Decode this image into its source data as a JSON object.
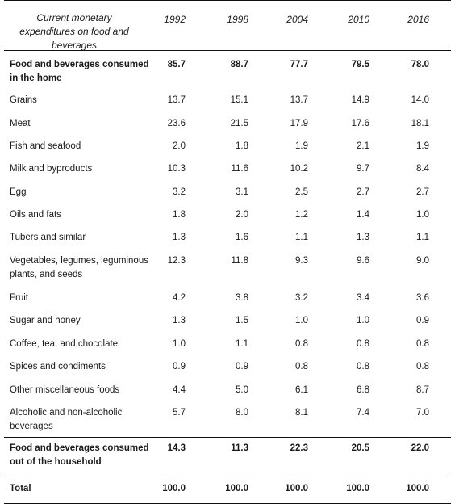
{
  "header": {
    "label": "Current monetary expenditures on food and beverages",
    "years": [
      "1992",
      "1998",
      "2004",
      "2010",
      "2016"
    ]
  },
  "rows": [
    {
      "label": "Food and beverages consumed in the home",
      "values": [
        "85.7",
        "88.7",
        "77.7",
        "79.5",
        "78.0"
      ],
      "bold": true
    },
    {
      "label": "Grains",
      "values": [
        "13.7",
        "15.1",
        "13.7",
        "14.9",
        "14.0"
      ]
    },
    {
      "label": "Meat",
      "values": [
        "23.6",
        "21.5",
        "17.9",
        "17.6",
        "18.1"
      ]
    },
    {
      "label": "Fish and seafood",
      "values": [
        "2.0",
        "1.8",
        "1.9",
        "2.1",
        "1.9"
      ]
    },
    {
      "label": "Milk and byproducts",
      "values": [
        "10.3",
        "11.6",
        "10.2",
        "9.7",
        "8.4"
      ]
    },
    {
      "label": "Egg",
      "values": [
        "3.2",
        "3.1",
        "2.5",
        "2.7",
        "2.7"
      ]
    },
    {
      "label": "Oils and fats",
      "values": [
        "1.8",
        "2.0",
        "1.2",
        "1.4",
        "1.0"
      ]
    },
    {
      "label": "Tubers and similar",
      "values": [
        "1.3",
        "1.6",
        "1.1",
        "1.3",
        "1.1"
      ]
    },
    {
      "label": "Vegetables, legumes, leguminous plants, and seeds",
      "values": [
        "12.3",
        "11.8",
        "9.3",
        "9.6",
        "9.0"
      ]
    },
    {
      "label": "Fruit",
      "values": [
        "4.2",
        "3.8",
        "3.2",
        "3.4",
        "3.6"
      ]
    },
    {
      "label": "Sugar and honey",
      "values": [
        "1.3",
        "1.5",
        "1.0",
        "1.0",
        "0.9"
      ]
    },
    {
      "label": "Coffee, tea, and chocolate",
      "values": [
        "1.0",
        "1.1",
        "0.8",
        "0.8",
        "0.8"
      ]
    },
    {
      "label": "Spices and condiments",
      "values": [
        "0.9",
        "0.9",
        "0.8",
        "0.8",
        "0.8"
      ]
    },
    {
      "label": "Other miscellaneous foods",
      "values": [
        "4.4",
        "5.0",
        "6.1",
        "6.8",
        "8.7"
      ]
    },
    {
      "label": "Alcoholic and non-alcoholic beverages",
      "values": [
        "5.7",
        "8.0",
        "8.1",
        "7.4",
        "7.0"
      ]
    },
    {
      "label": "Food and beverages consumed out of the household",
      "values": [
        "14.3",
        "11.3",
        "22.3",
        "20.5",
        "22.0"
      ],
      "bold": true
    },
    {
      "label": "Total",
      "values": [
        "100.0",
        "100.0",
        "100.0",
        "100.0",
        "100.0"
      ],
      "bold": true
    }
  ]
}
